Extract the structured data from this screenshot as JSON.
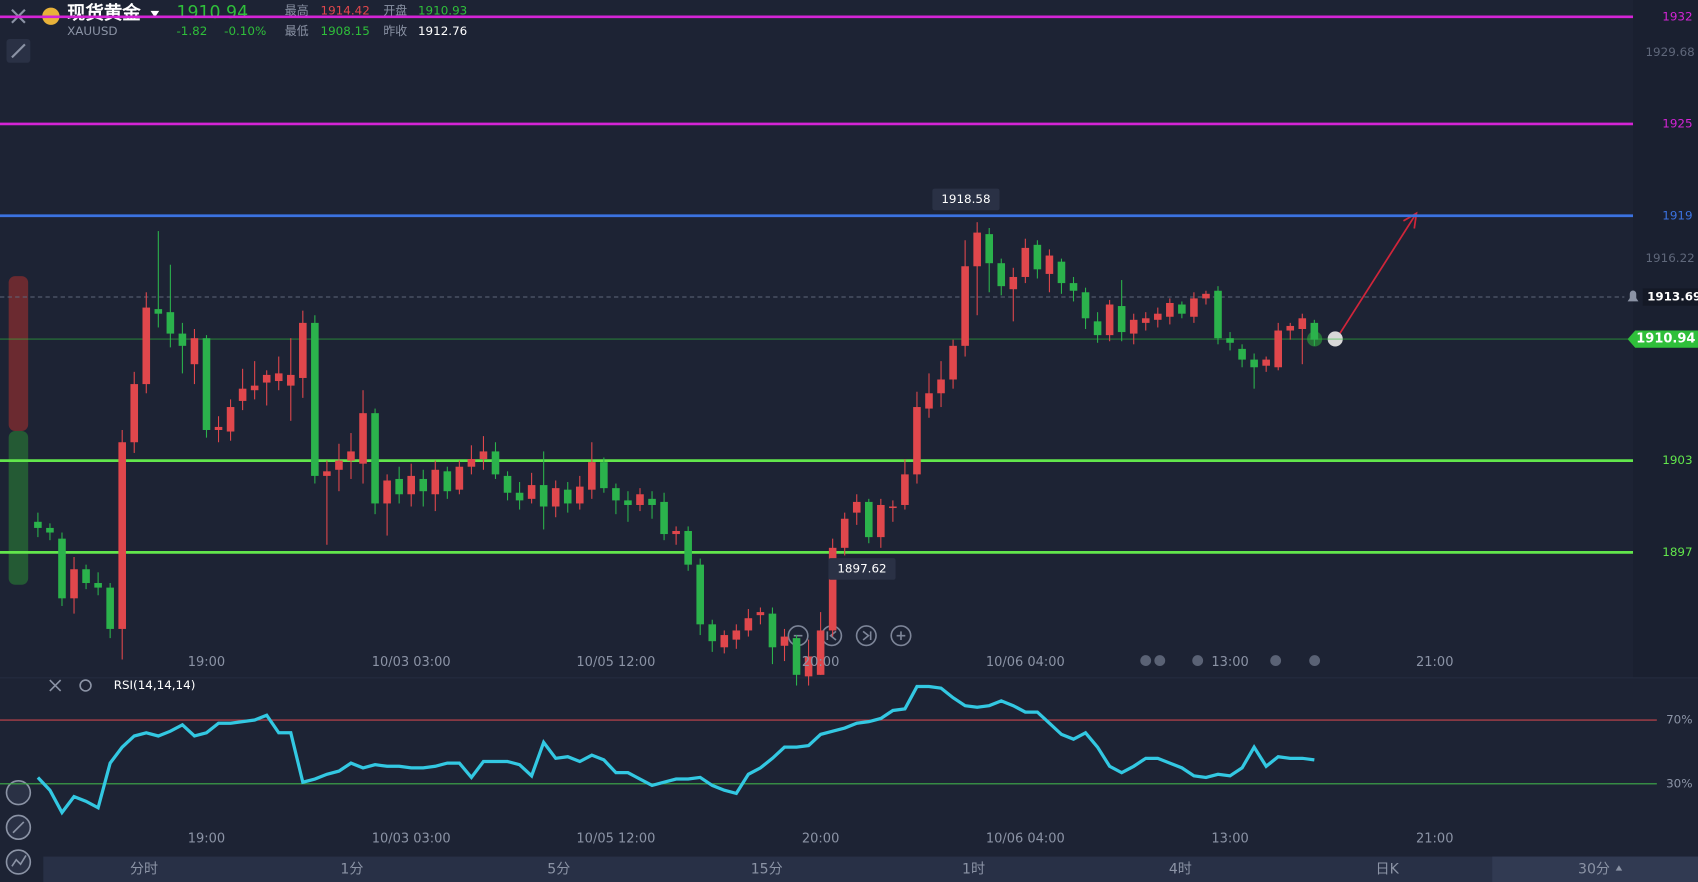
{
  "header": {
    "name": "现货黄金",
    "symbol": "XAUUSD",
    "price": "1910.94",
    "change": "-1.82",
    "change_pct": "-0.10%",
    "stats": [
      {
        "label": "最高",
        "value": "1914.42"
      },
      {
        "label": "开盘",
        "value": "1910.93"
      },
      {
        "label": "最低",
        "value": "1908.15"
      },
      {
        "label": "昨收",
        "value": "1912.76"
      }
    ]
  },
  "tabs": [
    "分时",
    "1分",
    "5分",
    "15分",
    "1时",
    "4时",
    "日K",
    "30分"
  ],
  "chart_data": [
    {
      "type": "candlestick",
      "up_color": "#e0474c",
      "down_color": "#2bb24c",
      "open": [
        1899.0,
        1898.6,
        1897.9,
        1894.0,
        1895.9,
        1895.0,
        1894.7,
        1892.0,
        1904.2,
        1908.0,
        1912.9,
        1912.7,
        1911.3,
        1909.3,
        1911.0,
        1905.0,
        1904.9,
        1906.9,
        1907.6,
        1908.1,
        1908.2,
        1907.9,
        1908.4,
        1912.0,
        1902.0,
        1902.4,
        1903.0,
        1902.8,
        1906.1,
        1900.2,
        1901.8,
        1900.8,
        1901.8,
        1900.8,
        1902.3,
        1901.1,
        1902.6,
        1903.1,
        1903.6,
        1902.0,
        1900.9,
        1900.5,
        1901.4,
        1900.0,
        1901.1,
        1900.2,
        1901.1,
        1902.9,
        1901.2,
        1900.4,
        1900.1,
        1900.5,
        1900.3,
        1898.2,
        1898.4,
        1896.2,
        1892.3,
        1890.8,
        1891.3,
        1891.9,
        1892.9,
        1893.0,
        1890.9,
        1891.4,
        1888.9,
        1889.0,
        1891.9,
        1897.3,
        1899.6,
        1900.3,
        1898.0,
        1899.9,
        1900.1,
        1902.1,
        1906.4,
        1907.4,
        1908.3,
        1910.5,
        1915.7,
        1917.8,
        1915.9,
        1914.2,
        1915.0,
        1917.1,
        1915.2,
        1916.0,
        1914.6,
        1914.0,
        1912.1,
        1911.2,
        1913.1,
        1911.3,
        1912.0,
        1912.2,
        1912.4,
        1913.2,
        1912.4,
        1913.6,
        1914.1,
        1911.0,
        1910.3,
        1909.6,
        1909.2,
        1909.1,
        1911.5,
        1911.6,
        1912.0
      ],
      "high": [
        1899.6,
        1898.9,
        1898.3,
        1896.7,
        1896.2,
        1895.7,
        1895.0,
        1905.0,
        1908.8,
        1914.0,
        1918.0,
        1915.8,
        1912.0,
        1911.6,
        1911.2,
        1905.9,
        1907.0,
        1909.0,
        1909.5,
        1908.9,
        1909.8,
        1911.0,
        1912.8,
        1912.5,
        1903.0,
        1904.1,
        1904.8,
        1907.6,
        1906.4,
        1902.1,
        1902.6,
        1902.8,
        1902.4,
        1903.0,
        1902.6,
        1903.0,
        1904.0,
        1904.6,
        1904.2,
        1902.3,
        1901.6,
        1902.2,
        1903.6,
        1901.7,
        1901.6,
        1902.0,
        1904.2,
        1903.2,
        1901.5,
        1901.0,
        1901.2,
        1901.0,
        1900.9,
        1898.7,
        1898.7,
        1896.6,
        1892.6,
        1891.9,
        1892.3,
        1893.3,
        1893.4,
        1893.4,
        1892.0,
        1891.6,
        1891.3,
        1893.1,
        1897.9,
        1899.6,
        1900.8,
        1900.5,
        1900.5,
        1900.4,
        1903.1,
        1907.5,
        1908.7,
        1909.5,
        1910.9,
        1917.4,
        1918.58,
        1918.2,
        1916.2,
        1915.6,
        1917.5,
        1917.4,
        1916.8,
        1916.2,
        1915.0,
        1914.3,
        1912.7,
        1913.5,
        1914.8,
        1912.6,
        1912.7,
        1913.0,
        1913.6,
        1913.4,
        1914.0,
        1914.1,
        1914.4,
        1911.4,
        1910.6,
        1910.0,
        1909.8,
        1912.0,
        1912.0,
        1912.6,
        1912.2
      ],
      "low": [
        1898.0,
        1897.8,
        1893.5,
        1893.0,
        1894.6,
        1894.2,
        1891.4,
        1890.0,
        1903.5,
        1907.4,
        1911.7,
        1910.4,
        1908.7,
        1908.0,
        1904.5,
        1904.2,
        1904.3,
        1906.3,
        1907.0,
        1906.6,
        1907.6,
        1905.6,
        1907.1,
        1901.5,
        1897.5,
        1901.0,
        1901.8,
        1901.5,
        1899.5,
        1898.1,
        1900.2,
        1900.0,
        1900.0,
        1899.7,
        1900.5,
        1900.8,
        1902.1,
        1902.4,
        1901.8,
        1900.4,
        1899.8,
        1900.2,
        1898.5,
        1899.3,
        1899.6,
        1899.8,
        1900.5,
        1900.9,
        1899.5,
        1899.0,
        1899.7,
        1899.2,
        1897.8,
        1897.5,
        1895.8,
        1891.6,
        1890.5,
        1890.4,
        1890.7,
        1891.5,
        1892.3,
        1889.7,
        1889.9,
        1888.3,
        1888.3,
        1889.0,
        1891.5,
        1896.8,
        1898.8,
        1897.6,
        1897.3,
        1899.0,
        1899.8,
        1901.5,
        1905.8,
        1906.5,
        1907.7,
        1909.8,
        1912.5,
        1914.0,
        1913.8,
        1912.1,
        1914.6,
        1914.9,
        1914.0,
        1913.9,
        1913.4,
        1911.6,
        1910.7,
        1910.8,
        1910.8,
        1910.6,
        1911.5,
        1911.7,
        1911.9,
        1912.3,
        1912.0,
        1913.2,
        1910.6,
        1910.2,
        1909.1,
        1907.7,
        1908.8,
        1908.9,
        1910.9,
        1909.3,
        1910.5
      ],
      "close": [
        1898.6,
        1898.3,
        1894.0,
        1895.9,
        1895.0,
        1894.7,
        1892.0,
        1904.2,
        1908.0,
        1913.0,
        1912.6,
        1911.3,
        1910.5,
        1911.0,
        1905.0,
        1905.2,
        1906.5,
        1907.7,
        1907.9,
        1908.6,
        1908.7,
        1908.6,
        1912.0,
        1902.0,
        1902.3,
        1903.0,
        1903.6,
        1906.1,
        1900.2,
        1901.7,
        1900.8,
        1902.0,
        1901.0,
        1902.4,
        1901.0,
        1902.6,
        1903.1,
        1903.6,
        1902.1,
        1900.9,
        1900.4,
        1901.4,
        1900.0,
        1901.2,
        1900.2,
        1901.3,
        1902.9,
        1901.2,
        1900.4,
        1900.1,
        1900.8,
        1900.1,
        1898.2,
        1898.4,
        1896.2,
        1892.3,
        1891.2,
        1891.6,
        1891.9,
        1892.7,
        1893.1,
        1890.8,
        1891.5,
        1889.0,
        1890.2,
        1891.9,
        1897.3,
        1899.2,
        1900.3,
        1898.0,
        1900.1,
        1900.0,
        1902.1,
        1906.5,
        1907.4,
        1908.3,
        1910.5,
        1915.7,
        1917.9,
        1915.9,
        1914.4,
        1915.0,
        1916.9,
        1915.5,
        1916.4,
        1914.6,
        1914.1,
        1912.3,
        1911.2,
        1913.2,
        1911.4,
        1912.2,
        1912.3,
        1912.6,
        1913.3,
        1912.6,
        1913.6,
        1913.9,
        1911.0,
        1910.7,
        1909.6,
        1909.1,
        1909.6,
        1911.5,
        1911.8,
        1912.3,
        1910.9
      ],
      "ylim": [
        1888.8,
        1933.1
      ],
      "yticks": [
        1929.68,
        1916.22
      ],
      "xticks": [
        {
          "value": 14,
          "label": "19:00"
        },
        {
          "value": 31,
          "label": "10/03 03:00"
        },
        {
          "value": 48,
          "label": "10/05 12:00"
        },
        {
          "value": 65,
          "label": "20:00"
        },
        {
          "value": 82,
          "label": "10/06 04:00"
        },
        {
          "value": 99,
          "label": "13:00"
        },
        {
          "value": 116,
          "label": "21:00"
        }
      ],
      "levels": [
        {
          "value": 1932,
          "color": "#d424d6"
        },
        {
          "value": 1925,
          "color": "#d424d6"
        },
        {
          "value": 1919,
          "color": "#3b72e0"
        },
        {
          "value": 1903,
          "color": "#62e64c"
        },
        {
          "value": 1897,
          "color": "#62e64c"
        }
      ],
      "alert_line": 1913.69,
      "price_line": {
        "value": 1910.94,
        "color": "#2fbf3a"
      },
      "annotations": [
        1918.58,
        1897.62
      ]
    },
    {
      "type": "line",
      "series": [
        {
          "name": "RSI(14,14,14)",
          "color": "#33c8e2",
          "values": [
            34,
            26,
            12,
            22,
            19,
            15,
            43,
            53,
            60,
            62,
            60,
            63,
            67,
            60,
            62,
            68,
            68,
            69,
            70,
            73,
            62,
            62,
            31,
            33,
            36,
            38,
            43,
            40,
            42,
            41,
            41,
            40,
            40,
            41,
            43,
            43,
            34,
            44,
            44,
            44,
            42,
            35,
            56,
            46,
            47,
            44,
            48,
            45,
            37,
            37,
            33,
            29,
            31,
            33,
            33,
            34,
            29,
            26,
            24,
            36,
            40,
            46,
            53,
            53,
            54,
            61,
            63,
            65,
            68,
            69,
            71,
            76,
            77,
            91,
            91,
            90,
            84,
            79,
            78,
            79,
            82,
            79,
            75,
            75,
            68,
            61,
            58,
            62,
            53,
            41,
            37,
            41,
            46,
            46,
            43,
            40,
            35,
            34,
            36,
            35,
            40,
            53,
            41,
            47,
            46,
            46,
            45
          ]
        }
      ],
      "ylim": [
        0,
        100
      ],
      "yticks": [
        {
          "value": 70,
          "label": "70%"
        },
        {
          "value": 30,
          "label": "30%"
        }
      ],
      "ytick_colors": [
        "#c7464c",
        "#3fae4a"
      ],
      "xticks": [
        {
          "value": 14,
          "label": "19:00"
        },
        {
          "value": 31,
          "label": "10/03 03:00"
        },
        {
          "value": 48,
          "label": "10/05 12:00"
        },
        {
          "value": 65,
          "label": "20:00"
        },
        {
          "value": 82,
          "label": "10/06 04:00"
        },
        {
          "value": 99,
          "label": "13:00"
        },
        {
          "value": 116,
          "label": "21:00"
        }
      ]
    }
  ]
}
